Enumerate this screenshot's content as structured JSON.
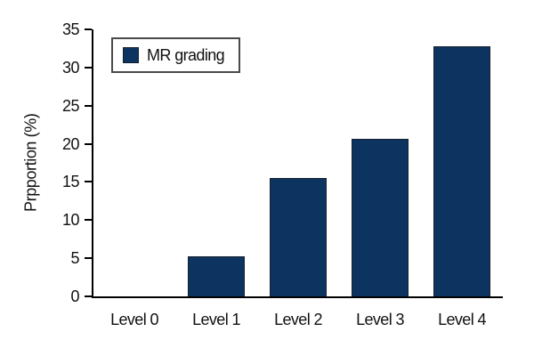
{
  "chart_data": {
    "type": "bar",
    "title": "",
    "categories": [
      "Level 0",
      "Level 1",
      "Level 2",
      "Level 3",
      "Level 4"
    ],
    "values": [
      0,
      5.3,
      15.5,
      20.7,
      32.8
    ],
    "xlabel": "",
    "ylabel": "Prpportion (%)",
    "ylim": [
      0,
      35
    ],
    "ytick_step": 5,
    "yticks": [
      0,
      5,
      10,
      15,
      20,
      25,
      30,
      35
    ],
    "grid": false,
    "legend": {
      "label": "MR grading",
      "position": "top-left"
    },
    "colors": {
      "bar_fill": "#0d3361",
      "bar_border": "#15212e",
      "axis": "#000000",
      "text": "#111111",
      "legend_border": "#4a4a4a",
      "background": "#ffffff"
    }
  }
}
